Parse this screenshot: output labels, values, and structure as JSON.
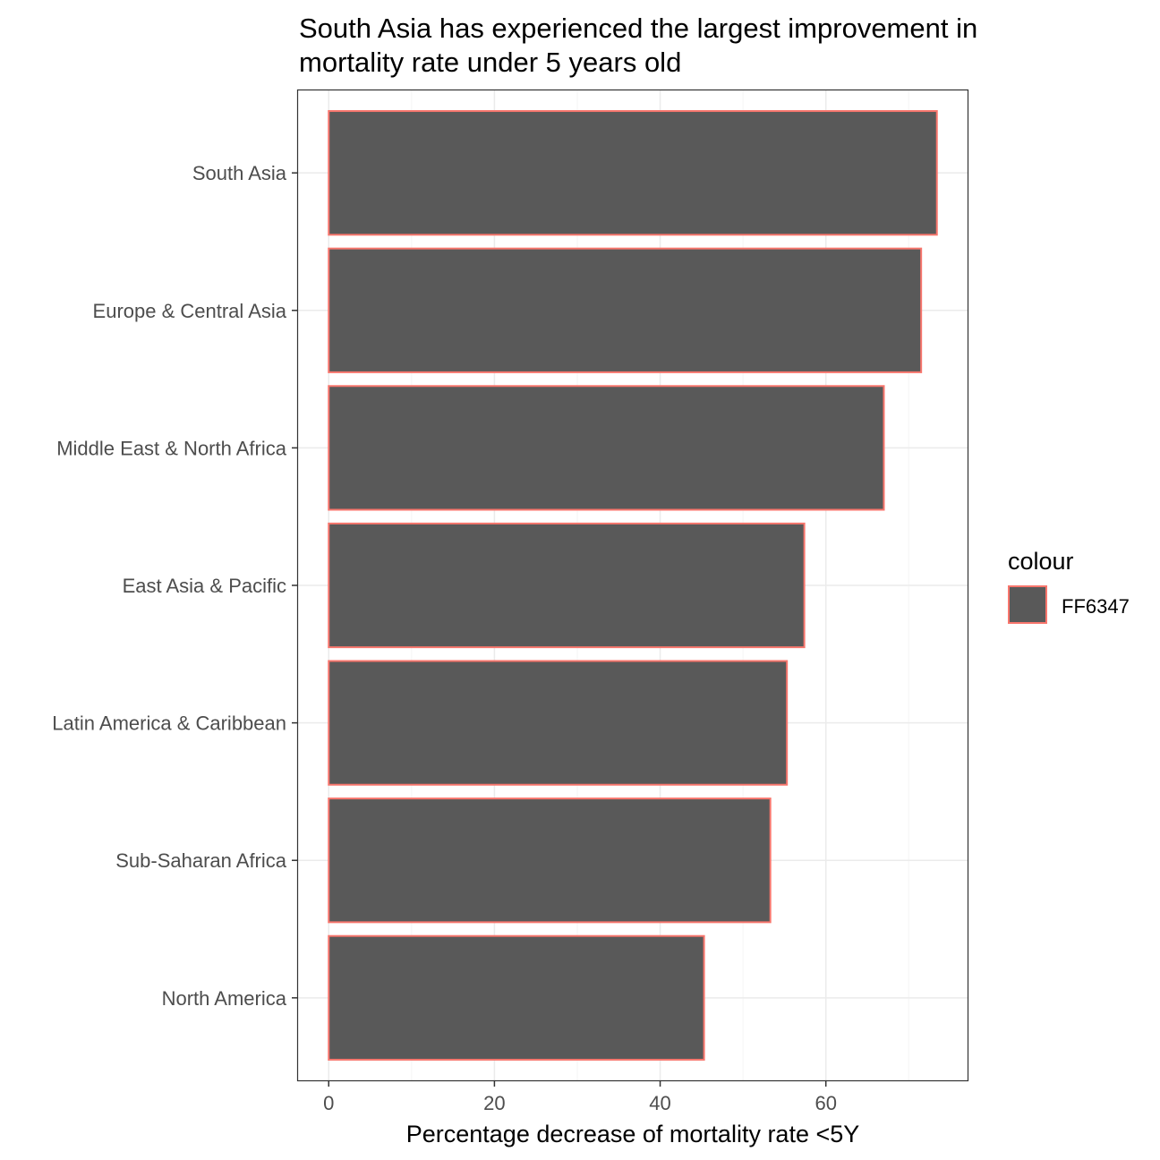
{
  "chart_data": {
    "type": "bar",
    "orientation": "horizontal",
    "title_lines": [
      "South Asia has experienced the largest improvement in",
      "mortality rate under 5 years old"
    ],
    "xlabel": "Percentage decrease of mortality rate <5Y",
    "ylabel": "",
    "categories": [
      "South Asia",
      "Europe & Central Asia",
      "Middle East & North Africa",
      "East Asia & Pacific",
      "Latin America & Caribbean",
      "Sub-Saharan Africa",
      "North America"
    ],
    "values": [
      73.4,
      71.5,
      67.0,
      57.4,
      55.3,
      53.3,
      45.3
    ],
    "xlim": [
      -3.7,
      77.1
    ],
    "x_ticks": [
      0,
      20,
      40,
      60
    ],
    "x_tick_labels": [
      "0",
      "20",
      "40",
      "60"
    ],
    "grid": true,
    "bar_fill": "#595959",
    "bar_outline": "#F8766D",
    "legend": {
      "title": "colour",
      "entries": [
        "FF6347"
      ],
      "placement": "right"
    }
  },
  "colors": {
    "panel_border": "#333333",
    "grid_major": "#ebebeb",
    "grid_minor": "#f5f5f5",
    "tick": "#333333",
    "tick_text": "#4d4d4d"
  }
}
